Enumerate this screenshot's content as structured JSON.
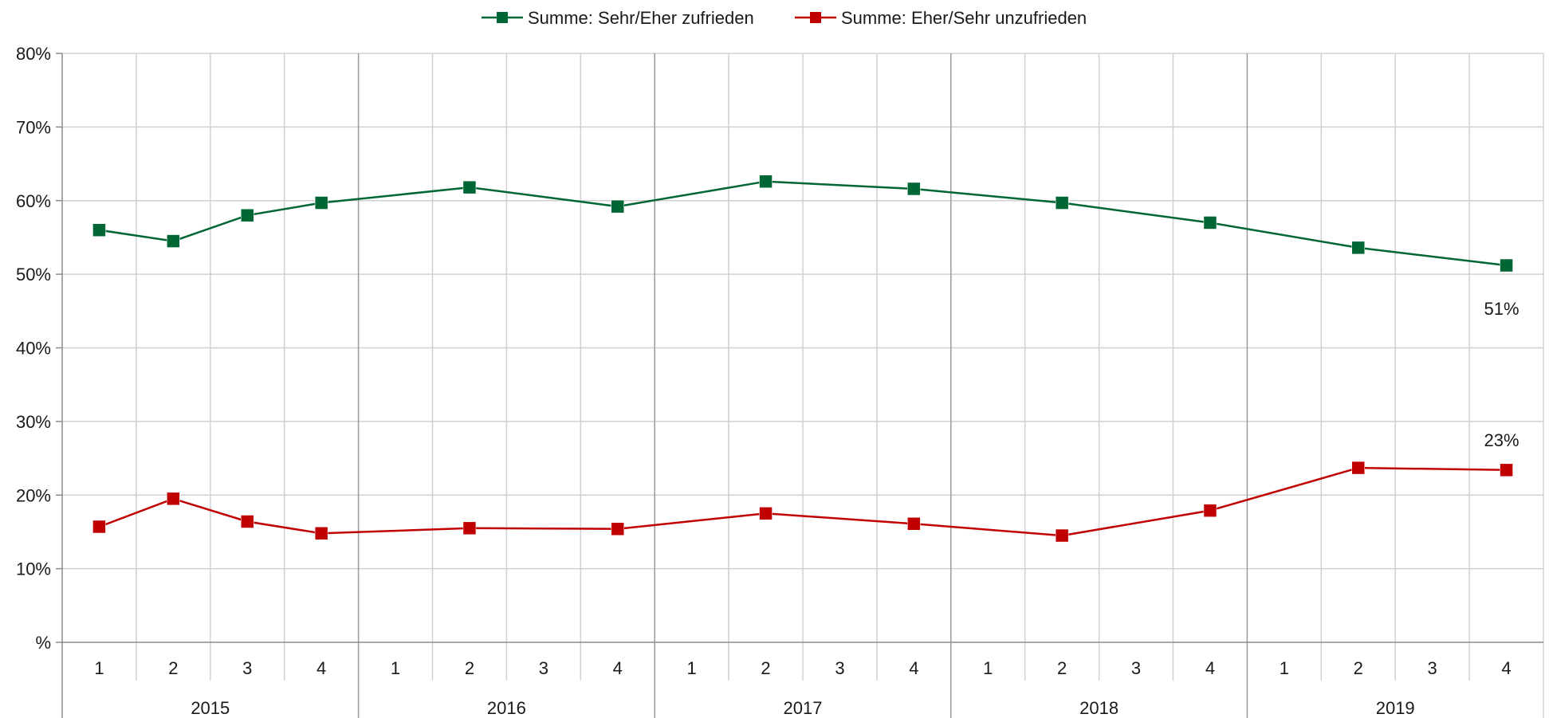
{
  "chart_data": {
    "type": "line",
    "title": "",
    "xlabel": "",
    "ylabel": "",
    "ylim": [
      0,
      80
    ],
    "y_ticks": [
      "%",
      "10%",
      "20%",
      "30%",
      "40%",
      "50%",
      "60%",
      "70%",
      "80%"
    ],
    "y_tick_values": [
      0,
      10,
      20,
      30,
      40,
      50,
      60,
      70,
      80
    ],
    "grid": true,
    "legend_position": "top-center",
    "quarter_labels": [
      "1",
      "2",
      "3",
      "4",
      "1",
      "2",
      "3",
      "4",
      "1",
      "2",
      "3",
      "4",
      "1",
      "2",
      "3",
      "4",
      "1",
      "2",
      "3",
      "4"
    ],
    "year_labels": [
      "2015",
      "2016",
      "2017",
      "2018",
      "2019"
    ],
    "series": [
      {
        "name": "Summe: Sehr/Eher zufrieden",
        "color": "#006633",
        "values": [
          56,
          54.5,
          58,
          59.7,
          null,
          61.8,
          null,
          59.2,
          null,
          62.6,
          null,
          61.6,
          null,
          59.7,
          null,
          57,
          null,
          53.6,
          null,
          51.2
        ],
        "end_label": "51%"
      },
      {
        "name": "Summe: Eher/Sehr unzufrieden",
        "color": "#C00000",
        "values": [
          15.7,
          19.5,
          16.4,
          14.8,
          null,
          15.5,
          null,
          15.4,
          null,
          17.5,
          null,
          16.1,
          null,
          14.5,
          null,
          17.9,
          null,
          23.7,
          null,
          23.4
        ],
        "end_label": "23%"
      }
    ]
  }
}
